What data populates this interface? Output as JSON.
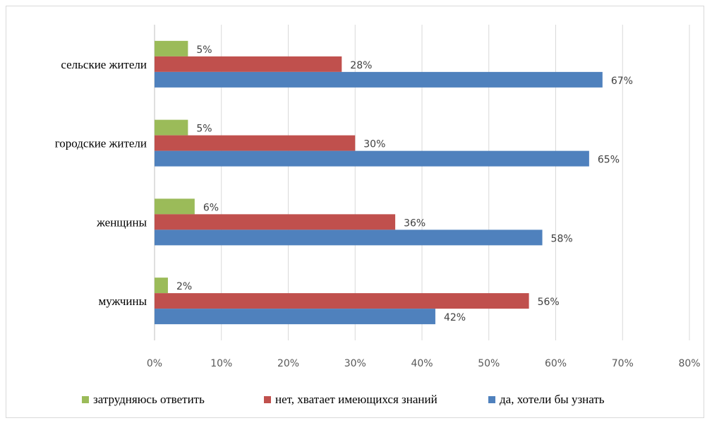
{
  "chart_data": {
    "type": "bar",
    "orientation": "horizontal",
    "categories": [
      "сельские жители",
      "городские жители",
      "женщины",
      "мужчины"
    ],
    "series": [
      {
        "name": "затрудняюсь ответить",
        "color": "#9bbb59",
        "values": [
          5,
          5,
          6,
          2
        ]
      },
      {
        "name": "нет, хватает имеющихся знаний",
        "color": "#c0504d",
        "values": [
          28,
          30,
          36,
          56
        ]
      },
      {
        "name": "да, хотели бы узнать",
        "color": "#4f81bd",
        "values": [
          67,
          65,
          58,
          42
        ]
      }
    ],
    "value_suffix": "%",
    "xlim": [
      0,
      80
    ],
    "xticks": [
      "0%",
      "10%",
      "20%",
      "30%",
      "40%",
      "50%",
      "60%",
      "70%",
      "80%"
    ],
    "grid": "vertical",
    "legend_position": "bottom"
  }
}
